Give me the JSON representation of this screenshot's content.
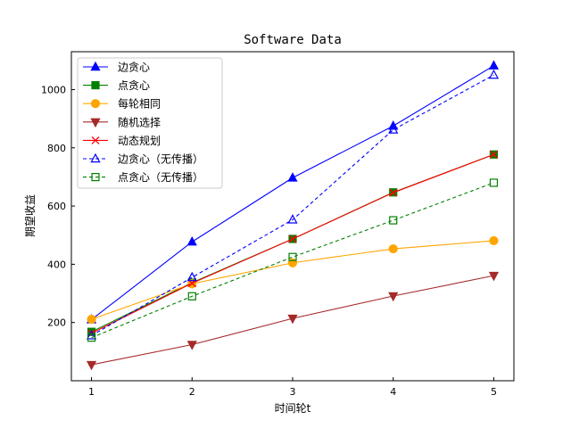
{
  "chart_data": {
    "type": "line",
    "title": "Software Data",
    "xlabel": "时间轮t",
    "ylabel": "期望收益",
    "x": [
      1,
      2,
      3,
      4,
      5
    ],
    "xlim": [
      0.8,
      5.2
    ],
    "ylim": [
      0,
      1130
    ],
    "xticks": [
      "1",
      "2",
      "3",
      "4",
      "5"
    ],
    "yticks": [
      200,
      400,
      600,
      800,
      1000
    ],
    "legend_position": "top-left",
    "grid": false,
    "series": [
      {
        "name": "边贪心",
        "values": [
          210,
          477,
          697,
          875,
          1082
        ],
        "color": "#0000ff",
        "marker": "triangle-up",
        "filled": true,
        "dashed": false
      },
      {
        "name": "点贪心",
        "values": [
          168,
          337,
          487,
          647,
          777
        ],
        "color": "#008000",
        "marker": "square",
        "filled": true,
        "dashed": false
      },
      {
        "name": "每轮相同",
        "values": [
          211,
          333,
          405,
          453,
          481
        ],
        "color": "#ffa500",
        "marker": "circle",
        "filled": true,
        "dashed": false
      },
      {
        "name": "随机选择",
        "values": [
          55,
          124,
          214,
          291,
          361
        ],
        "color": "#a52a2a",
        "marker": "triangle-down",
        "filled": true,
        "dashed": false
      },
      {
        "name": "动态规划",
        "values": [
          163,
          335,
          487,
          646,
          777
        ],
        "color": "#ff0000",
        "marker": "x",
        "filled": false,
        "dashed": false
      },
      {
        "name": "边贪心（无传播）",
        "values": [
          155,
          355,
          553,
          862,
          1050
        ],
        "color": "#0000ff",
        "marker": "triangle-up",
        "filled": false,
        "dashed": true
      },
      {
        "name": "点贪心（无传播）",
        "values": [
          148,
          290,
          425,
          551,
          680
        ],
        "color": "#008000",
        "marker": "square",
        "filled": false,
        "dashed": true
      }
    ]
  }
}
